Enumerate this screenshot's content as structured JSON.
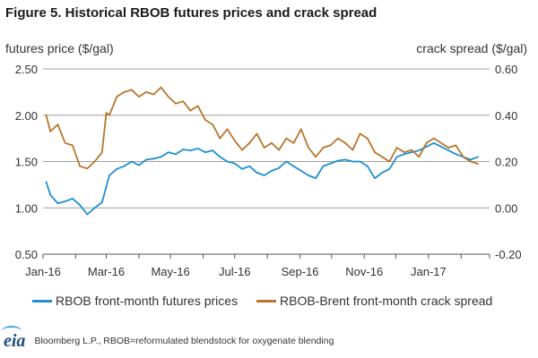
{
  "title": "Figure 5. Historical RBOB futures prices and crack spread",
  "footer": {
    "logo": "eia",
    "source": "Bloomberg L.P., RBOB=reformulated blendstock for oxygenate blending"
  },
  "colors": {
    "blue": "#1f8fd0",
    "orange": "#b8752b",
    "grid": "#a0a0a0",
    "axis": "#555555"
  },
  "chart_data": {
    "type": "line",
    "title": "Figure 5. Historical RBOB futures prices and crack spread",
    "xlabel": "",
    "ylabel": "futures price ($/gal)",
    "y2label": "crack spread ($/gal)",
    "ylim": [
      0.5,
      2.5
    ],
    "y2lim": [
      -0.2,
      0.6
    ],
    "grid": true,
    "legend_position": "bottom",
    "x_ticks": [
      "Jan-16",
      "Mar-16",
      "May-16",
      "Jul-16",
      "Sep-16",
      "Nov-16",
      "Jan-17"
    ],
    "y_ticks": [
      "0.50",
      "1.00",
      "1.50",
      "2.00",
      "2.50"
    ],
    "y2_ticks": [
      "-0.20",
      "0.00",
      "0.20",
      "0.40",
      "0.60"
    ],
    "series": [
      {
        "name": "RBOB front-month futures prices",
        "axis": "left",
        "color": "#1f8fd0",
        "x": [
          "2016-01-04",
          "2016-01-08",
          "2016-01-15",
          "2016-01-22",
          "2016-01-29",
          "2016-02-05",
          "2016-02-12",
          "2016-02-19",
          "2016-02-26",
          "2016-03-04",
          "2016-03-11",
          "2016-03-18",
          "2016-03-25",
          "2016-04-01",
          "2016-04-08",
          "2016-04-15",
          "2016-04-22",
          "2016-04-29",
          "2016-05-06",
          "2016-05-13",
          "2016-05-20",
          "2016-05-27",
          "2016-06-03",
          "2016-06-10",
          "2016-06-17",
          "2016-06-24",
          "2016-07-01",
          "2016-07-08",
          "2016-07-15",
          "2016-07-22",
          "2016-07-29",
          "2016-08-05",
          "2016-08-12",
          "2016-08-19",
          "2016-08-26",
          "2016-09-02",
          "2016-09-09",
          "2016-09-16",
          "2016-09-23",
          "2016-09-30",
          "2016-10-07",
          "2016-10-14",
          "2016-10-21",
          "2016-10-28",
          "2016-11-04",
          "2016-11-11",
          "2016-11-18",
          "2016-11-25",
          "2016-12-02",
          "2016-12-09",
          "2016-12-16",
          "2016-12-23",
          "2016-12-30",
          "2017-01-06",
          "2017-01-13",
          "2017-01-20",
          "2017-01-27",
          "2017-02-03",
          "2017-02-10",
          "2017-02-17"
        ],
        "values": [
          1.28,
          1.14,
          1.05,
          1.07,
          1.1,
          1.03,
          0.93,
          1.0,
          1.06,
          1.35,
          1.42,
          1.45,
          1.5,
          1.46,
          1.52,
          1.53,
          1.55,
          1.6,
          1.58,
          1.63,
          1.62,
          1.64,
          1.6,
          1.62,
          1.55,
          1.5,
          1.48,
          1.42,
          1.45,
          1.38,
          1.35,
          1.4,
          1.43,
          1.5,
          1.45,
          1.4,
          1.35,
          1.32,
          1.45,
          1.48,
          1.51,
          1.52,
          1.5,
          1.5,
          1.45,
          1.32,
          1.38,
          1.42,
          1.55,
          1.58,
          1.6,
          1.62,
          1.66,
          1.7,
          1.66,
          1.62,
          1.58,
          1.55,
          1.52,
          1.55
        ]
      },
      {
        "name": "RBOB-Brent front-month crack spread",
        "axis": "right",
        "color": "#b8752b",
        "x": [
          "2016-01-04",
          "2016-01-08",
          "2016-01-15",
          "2016-01-22",
          "2016-01-29",
          "2016-02-05",
          "2016-02-12",
          "2016-02-19",
          "2016-02-26",
          "2016-03-01",
          "2016-03-04",
          "2016-03-11",
          "2016-03-18",
          "2016-03-25",
          "2016-04-01",
          "2016-04-08",
          "2016-04-15",
          "2016-04-22",
          "2016-04-29",
          "2016-05-06",
          "2016-05-13",
          "2016-05-20",
          "2016-05-27",
          "2016-06-03",
          "2016-06-10",
          "2016-06-17",
          "2016-06-24",
          "2016-07-01",
          "2016-07-08",
          "2016-07-15",
          "2016-07-22",
          "2016-07-29",
          "2016-08-05",
          "2016-08-12",
          "2016-08-19",
          "2016-08-26",
          "2016-09-02",
          "2016-09-09",
          "2016-09-16",
          "2016-09-23",
          "2016-09-30",
          "2016-10-07",
          "2016-10-14",
          "2016-10-21",
          "2016-10-28",
          "2016-11-04",
          "2016-11-11",
          "2016-11-18",
          "2016-11-25",
          "2016-12-02",
          "2016-12-09",
          "2016-12-16",
          "2016-12-23",
          "2016-12-30",
          "2017-01-06",
          "2017-01-13",
          "2017-01-20",
          "2017-01-27",
          "2017-02-03",
          "2017-02-10",
          "2017-02-17"
        ],
        "values": [
          0.4,
          0.33,
          0.36,
          0.28,
          0.27,
          0.18,
          0.17,
          0.2,
          0.24,
          0.41,
          0.4,
          0.48,
          0.5,
          0.51,
          0.48,
          0.5,
          0.49,
          0.52,
          0.48,
          0.45,
          0.46,
          0.42,
          0.44,
          0.38,
          0.36,
          0.3,
          0.34,
          0.29,
          0.25,
          0.28,
          0.32,
          0.26,
          0.28,
          0.25,
          0.3,
          0.28,
          0.34,
          0.26,
          0.22,
          0.26,
          0.27,
          0.3,
          0.28,
          0.25,
          0.32,
          0.3,
          0.24,
          0.22,
          0.2,
          0.26,
          0.24,
          0.25,
          0.22,
          0.28,
          0.3,
          0.28,
          0.26,
          0.27,
          0.22,
          0.2,
          0.19
        ]
      }
    ]
  }
}
